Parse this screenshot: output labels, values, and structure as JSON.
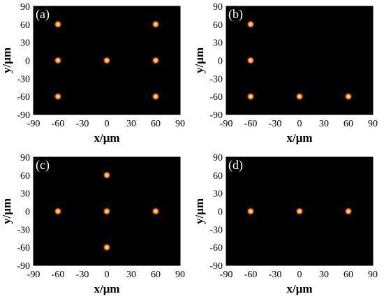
{
  "chart_data": [
    {
      "type": "scatter",
      "panel_label": "(a)",
      "xlabel": "x/μm",
      "ylabel": "y/μm",
      "xlim": [
        -90,
        90
      ],
      "ylim": [
        -90,
        90
      ],
      "xticks": [
        "-90",
        "-60",
        "-30",
        "0",
        "30",
        "60",
        "90"
      ],
      "yticks": [
        "90",
        "60",
        "30",
        "0",
        "-30",
        "-60",
        "-90"
      ],
      "grid": false,
      "background": "#000000",
      "spot_color": "#ff8a1a",
      "points": [
        [
          -60,
          60
        ],
        [
          60,
          60
        ],
        [
          -60,
          0
        ],
        [
          0,
          0
        ],
        [
          60,
          0
        ],
        [
          -60,
          -60
        ],
        [
          60,
          -60
        ]
      ]
    },
    {
      "type": "scatter",
      "panel_label": "(b)",
      "xlabel": "x/μm",
      "ylabel": "y/μm",
      "xlim": [
        -90,
        90
      ],
      "ylim": [
        -90,
        90
      ],
      "xticks": [
        "-90",
        "-60",
        "-30",
        "0",
        "30",
        "60",
        "90"
      ],
      "yticks": [
        "90",
        "60",
        "30",
        "0",
        "-30",
        "-60",
        "-90"
      ],
      "grid": false,
      "background": "#000000",
      "spot_color": "#ff8a1a",
      "points": [
        [
          -60,
          60
        ],
        [
          -60,
          0
        ],
        [
          -60,
          -60
        ],
        [
          0,
          -60
        ],
        [
          60,
          -60
        ]
      ]
    },
    {
      "type": "scatter",
      "panel_label": "(c)",
      "xlabel": "x/μm",
      "ylabel": "y/μm",
      "xlim": [
        -90,
        90
      ],
      "ylim": [
        -90,
        90
      ],
      "xticks": [
        "-90",
        "-60",
        "-30",
        "0",
        "30",
        "60",
        "90"
      ],
      "yticks": [
        "90",
        "60",
        "30",
        "0",
        "-30",
        "-60",
        "-90"
      ],
      "grid": false,
      "background": "#000000",
      "spot_color": "#ff8a1a",
      "points": [
        [
          0,
          60
        ],
        [
          -60,
          0
        ],
        [
          0,
          0
        ],
        [
          60,
          0
        ],
        [
          0,
          -60
        ]
      ]
    },
    {
      "type": "scatter",
      "panel_label": "(d)",
      "xlabel": "x/μm",
      "ylabel": "y/μm",
      "xlim": [
        -90,
        90
      ],
      "ylim": [
        -90,
        90
      ],
      "xticks": [
        "-90",
        "-60",
        "-30",
        "0",
        "30",
        "60",
        "90"
      ],
      "yticks": [
        "90",
        "60",
        "30",
        "0",
        "-30",
        "-60",
        "-90"
      ],
      "grid": false,
      "background": "#000000",
      "spot_color": "#ff8a1a",
      "points": [
        [
          -60,
          0
        ],
        [
          0,
          0
        ],
        [
          60,
          0
        ]
      ]
    }
  ]
}
